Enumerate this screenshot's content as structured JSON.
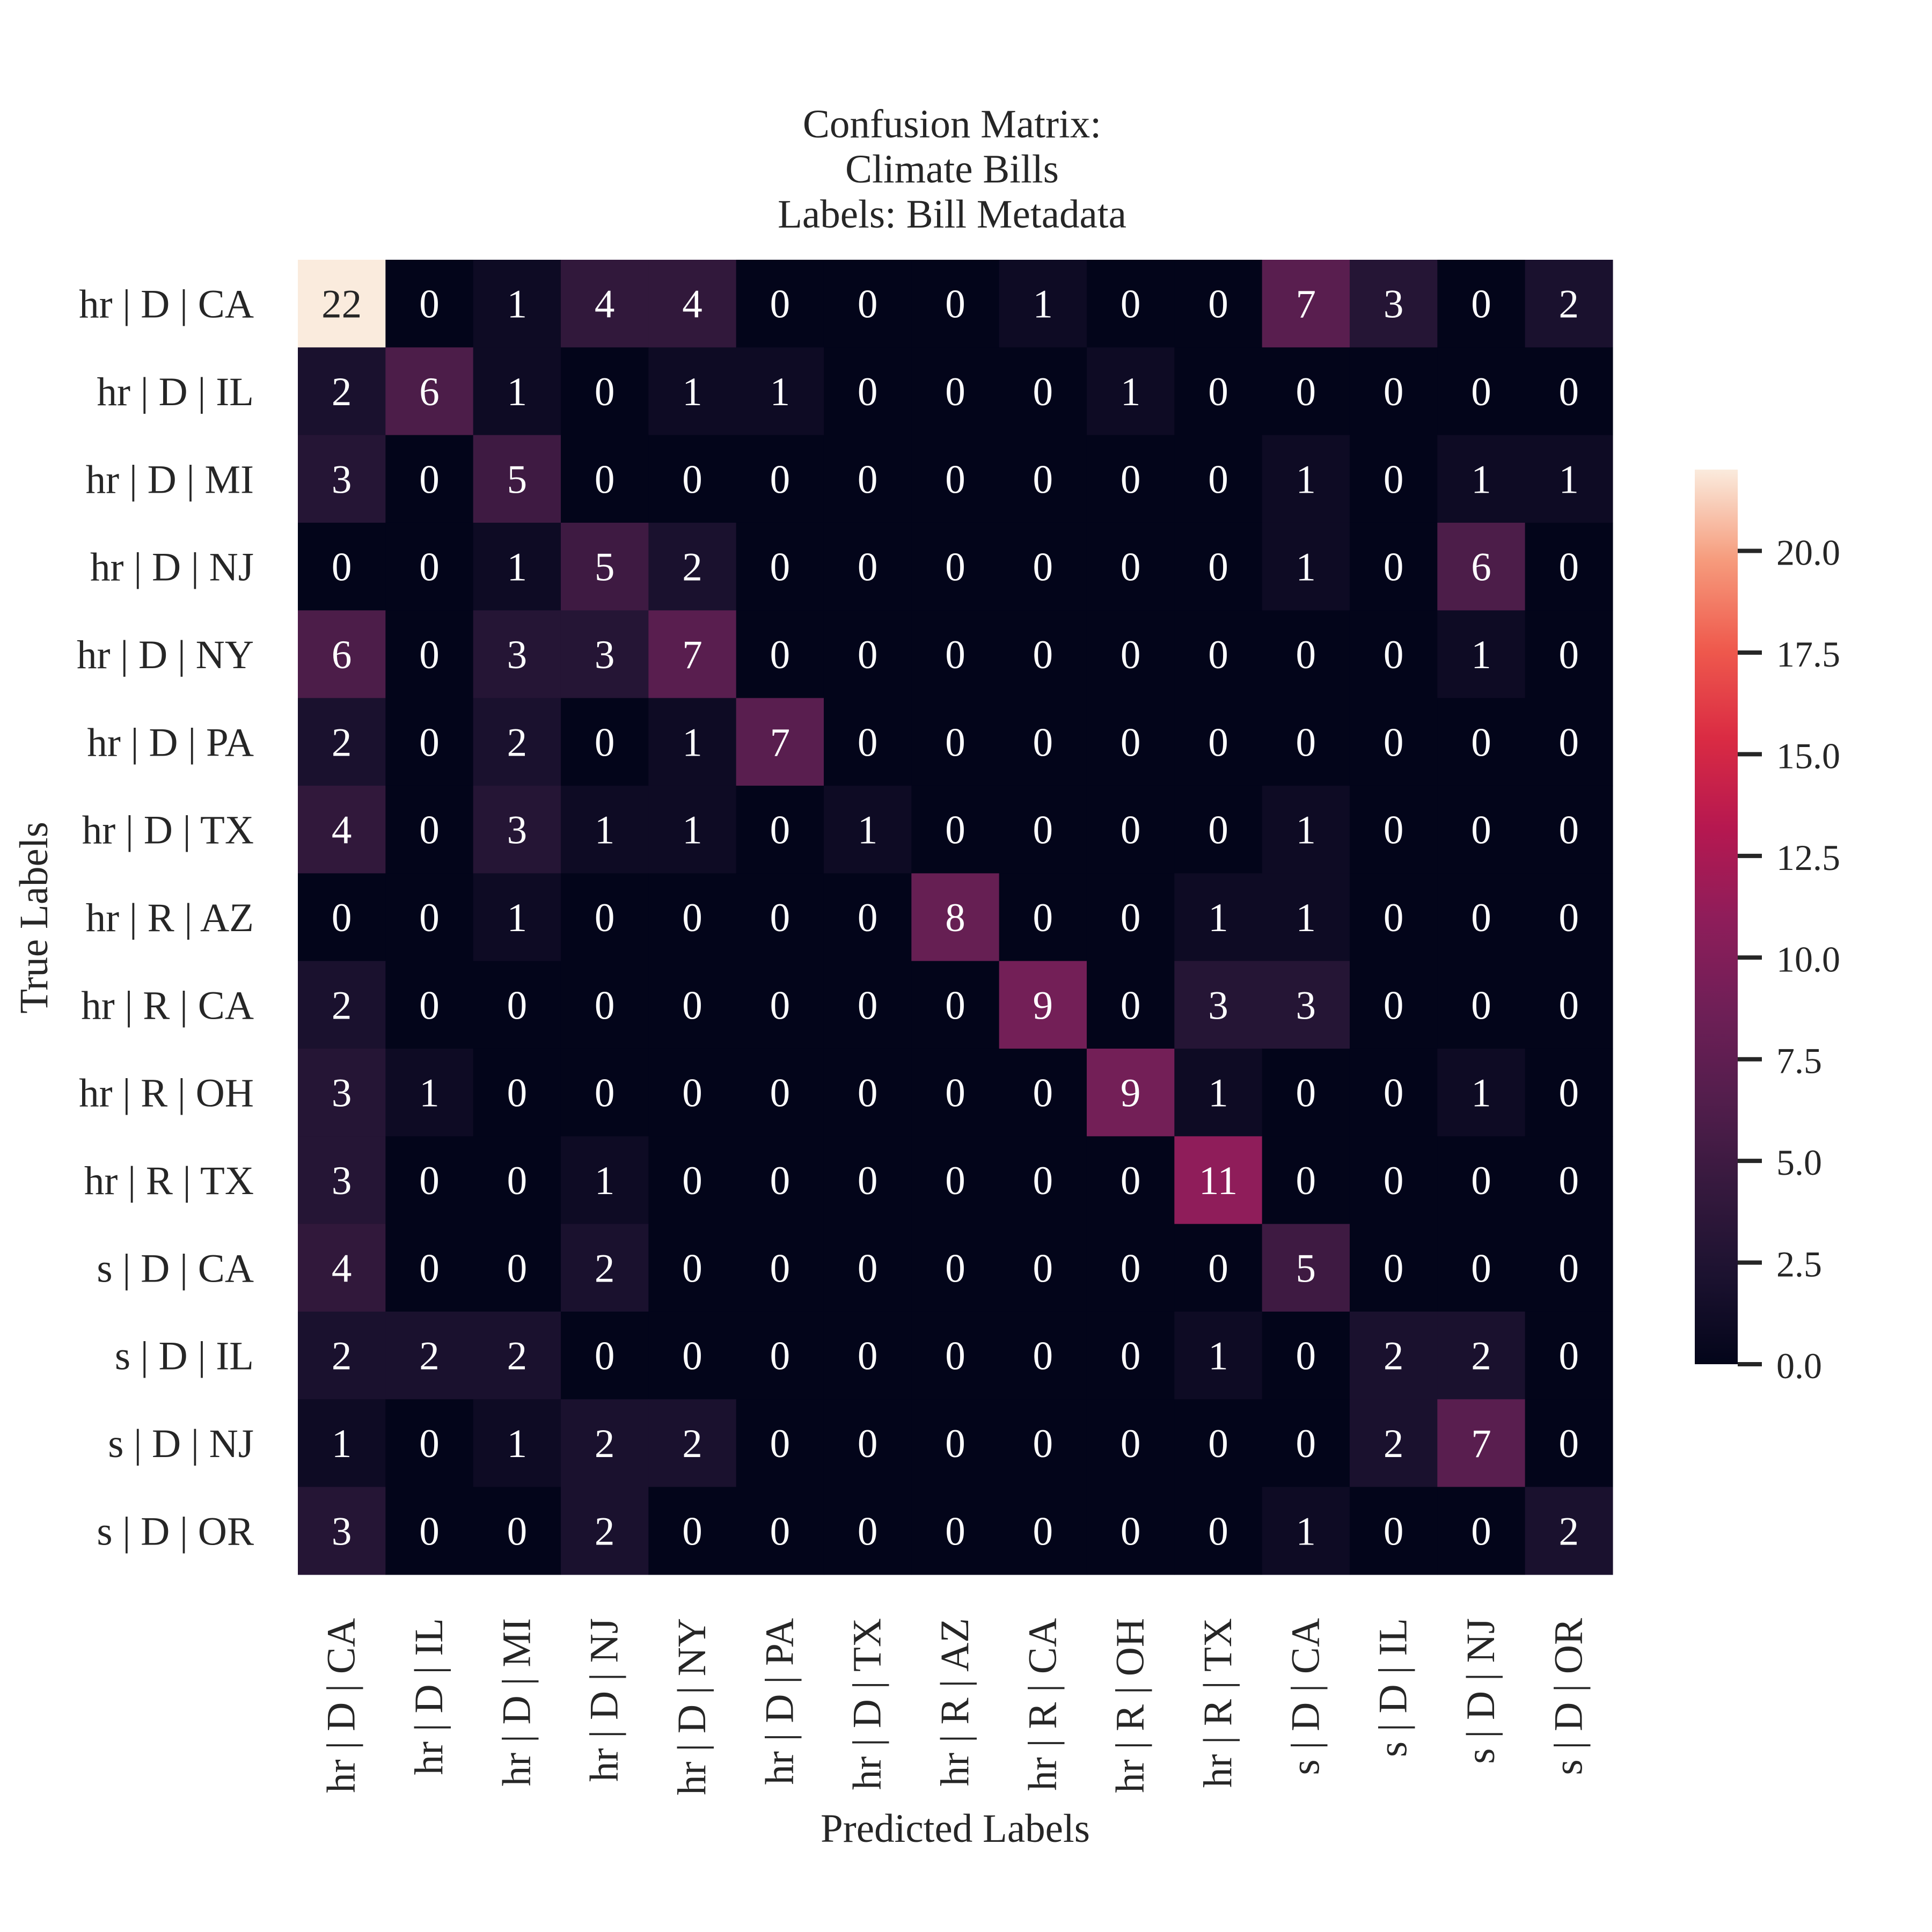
{
  "chart_data": {
    "type": "heatmap",
    "title": [
      "Confusion Matrix:",
      "Climate Bills",
      "Labels: Bill Metadata"
    ],
    "xlabel": "Predicted Labels",
    "ylabel": "True Labels",
    "x_categories": [
      "hr | D | CA",
      "hr | D | IL",
      "hr | D | MI",
      "hr | D | NJ",
      "hr | D | NY",
      "hr | D | PA",
      "hr | D | TX",
      "hr | R | AZ",
      "hr | R | CA",
      "hr | R | OH",
      "hr | R | TX",
      "s | D | CA",
      "s | D | IL",
      "s | D | NJ",
      "s | D | OR"
    ],
    "y_categories": [
      "hr | D | CA",
      "hr | D | IL",
      "hr | D | MI",
      "hr | D | NJ",
      "hr | D | NY",
      "hr | D | PA",
      "hr | D | TX",
      "hr | R | AZ",
      "hr | R | CA",
      "hr | R | OH",
      "hr | R | TX",
      "s | D | CA",
      "s | D | IL",
      "s | D | NJ",
      "s | D | OR"
    ],
    "matrix": [
      [
        22,
        0,
        1,
        4,
        4,
        0,
        0,
        0,
        1,
        0,
        0,
        7,
        3,
        0,
        2
      ],
      [
        2,
        6,
        1,
        0,
        1,
        1,
        0,
        0,
        0,
        1,
        0,
        0,
        0,
        0,
        0
      ],
      [
        3,
        0,
        5,
        0,
        0,
        0,
        0,
        0,
        0,
        0,
        0,
        1,
        0,
        1,
        1
      ],
      [
        0,
        0,
        1,
        5,
        2,
        0,
        0,
        0,
        0,
        0,
        0,
        1,
        0,
        6,
        0
      ],
      [
        6,
        0,
        3,
        3,
        7,
        0,
        0,
        0,
        0,
        0,
        0,
        0,
        0,
        1,
        0
      ],
      [
        2,
        0,
        2,
        0,
        1,
        7,
        0,
        0,
        0,
        0,
        0,
        0,
        0,
        0,
        0
      ],
      [
        4,
        0,
        3,
        1,
        1,
        0,
        1,
        0,
        0,
        0,
        0,
        1,
        0,
        0,
        0
      ],
      [
        0,
        0,
        1,
        0,
        0,
        0,
        0,
        8,
        0,
        0,
        1,
        1,
        0,
        0,
        0
      ],
      [
        2,
        0,
        0,
        0,
        0,
        0,
        0,
        0,
        9,
        0,
        3,
        3,
        0,
        0,
        0
      ],
      [
        3,
        1,
        0,
        0,
        0,
        0,
        0,
        0,
        0,
        9,
        1,
        0,
        0,
        1,
        0
      ],
      [
        3,
        0,
        0,
        1,
        0,
        0,
        0,
        0,
        0,
        0,
        11,
        0,
        0,
        0,
        0
      ],
      [
        4,
        0,
        0,
        2,
        0,
        0,
        0,
        0,
        0,
        0,
        0,
        5,
        0,
        0,
        0
      ],
      [
        2,
        2,
        2,
        0,
        0,
        0,
        0,
        0,
        0,
        0,
        1,
        0,
        2,
        2,
        0
      ],
      [
        1,
        0,
        1,
        2,
        2,
        0,
        0,
        0,
        0,
        0,
        0,
        0,
        2,
        7,
        0
      ],
      [
        3,
        0,
        0,
        2,
        0,
        0,
        0,
        0,
        0,
        0,
        0,
        1,
        0,
        0,
        2
      ]
    ],
    "colorbar": {
      "range": [
        0,
        22
      ],
      "ticks": [
        0.0,
        2.5,
        5.0,
        7.5,
        10.0,
        12.5,
        15.0,
        17.5,
        20.0
      ],
      "tick_labels": [
        "0.0",
        "2.5",
        "5.0",
        "7.5",
        "10.0",
        "12.5",
        "15.0",
        "17.5",
        "20.0"
      ],
      "colormap": "rocket"
    },
    "grid": false,
    "annotations": "cell counts"
  }
}
